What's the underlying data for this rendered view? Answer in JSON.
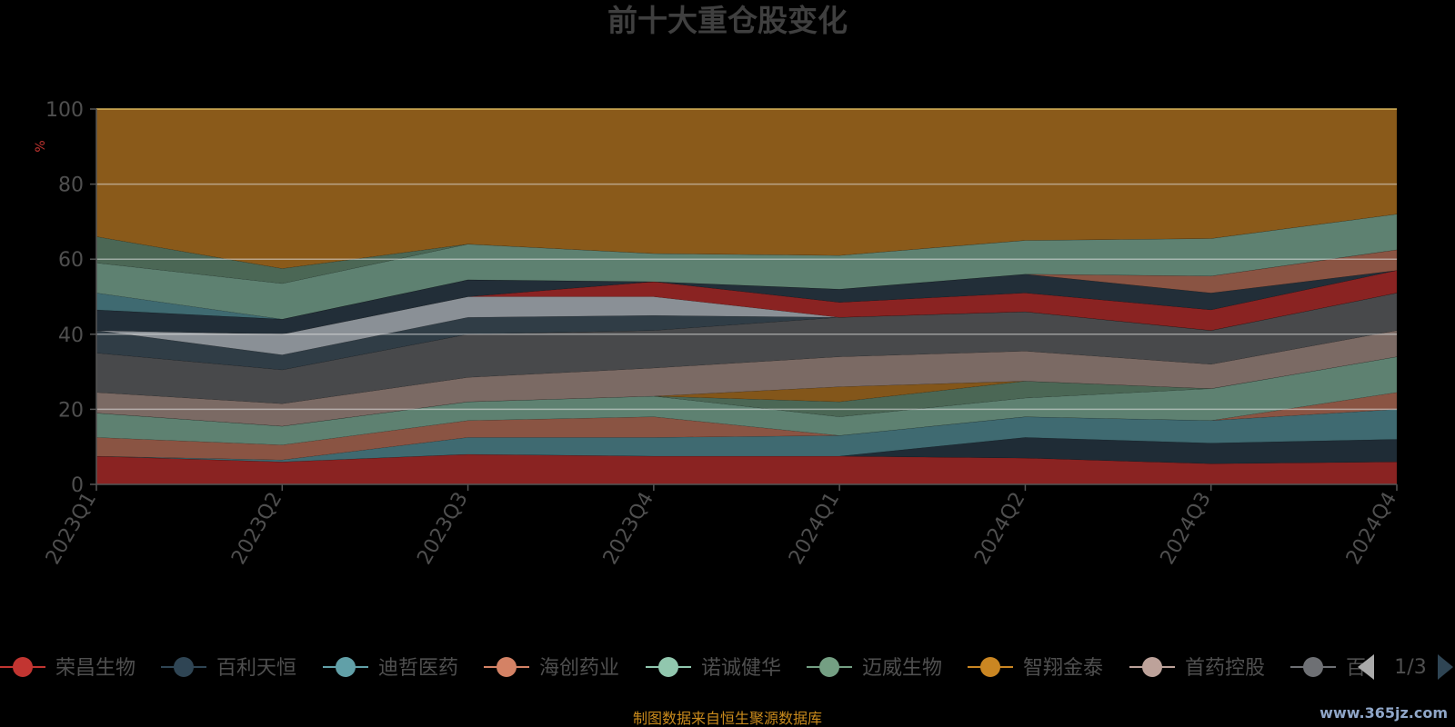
{
  "chart_data": {
    "type": "area",
    "title": "前十大重仓股变化",
    "ylabel": "%",
    "ylim": [
      0,
      100
    ],
    "yticks": [
      0,
      20,
      40,
      60,
      80,
      100
    ],
    "categories": [
      "2023Q1",
      "2023Q2",
      "2023Q3",
      "2023Q4",
      "2024Q1",
      "2024Q2",
      "2024Q3",
      "2024Q4"
    ],
    "stacked": true,
    "grid": true,
    "legend_position": "bottom",
    "legend_page": "1/3",
    "legend": [
      {
        "name": "荣昌生物",
        "color": "#c23531"
      },
      {
        "name": "百利天恒",
        "color": "#2f4554"
      },
      {
        "name": "迪哲医药",
        "color": "#61a0a8"
      },
      {
        "name": "海创药业",
        "color": "#d48265"
      },
      {
        "name": "诺诚健华",
        "color": "#91c7ae"
      },
      {
        "name": "迈威生物",
        "color": "#749f83"
      },
      {
        "name": "智翔金泰",
        "color": "#ca8622"
      },
      {
        "name": "首药控股",
        "color": "#bda29a"
      },
      {
        "name": "百",
        "color": "#6e7074"
      }
    ],
    "bands": [
      {
        "color": "#8a2322",
        "upper": [
          7.5,
          6,
          8,
          7.5,
          7.5,
          7,
          5.5,
          6
        ]
      },
      {
        "color": "#1f2c36",
        "upper": [
          7.5,
          6,
          8,
          7.5,
          7.5,
          12.5,
          11,
          12
        ]
      },
      {
        "color": "#3f6a71",
        "upper": [
          7.5,
          6.5,
          12.5,
          12.5,
          13,
          18,
          17,
          20
        ]
      },
      {
        "color": "#8a5443",
        "upper": [
          12.5,
          10.5,
          17,
          18,
          13,
          18,
          17,
          24.5
        ]
      },
      {
        "color": "#5e8171",
        "upper": [
          19,
          15.5,
          22,
          23.5,
          18,
          23,
          25.5,
          34
        ]
      },
      {
        "color": "#4b6755",
        "upper": [
          19,
          15.5,
          22,
          23.5,
          22,
          27.5,
          25.5,
          34
        ]
      },
      {
        "color": "#83561a",
        "upper": [
          19,
          15.5,
          22,
          23.5,
          26,
          27.5,
          25.5,
          34
        ]
      },
      {
        "color": "#7b6a64",
        "upper": [
          24.5,
          21.5,
          28.5,
          31,
          34,
          35.5,
          32,
          41
        ]
      },
      {
        "color": "#48494b",
        "upper": [
          35,
          30.5,
          40,
          41,
          44.5,
          46,
          41,
          51
        ]
      },
      {
        "color": "#303d46",
        "upper": [
          41,
          34.5,
          44.5,
          45,
          44.5,
          46,
          41,
          51
        ]
      },
      {
        "color": "#8a9096",
        "upper": [
          41,
          40,
          50,
          50,
          44.5,
          46,
          41,
          51
        ]
      },
      {
        "color": "#8a2322",
        "upper": [
          41,
          40,
          50,
          54,
          48.5,
          51,
          46.5,
          57
        ]
      },
      {
        "color": "#222e38",
        "upper": [
          46.5,
          44,
          54.5,
          54,
          52,
          56,
          51,
          57
        ]
      },
      {
        "color": "#8a5443",
        "upper": [
          46.5,
          44,
          54.5,
          54,
          52,
          56,
          55.5,
          62.5
        ]
      },
      {
        "color": "#3f6a71",
        "upper": [
          51,
          44,
          54.5,
          54,
          52,
          56,
          55.5,
          62.5
        ]
      },
      {
        "color": "#5e8171",
        "upper": [
          59,
          53.5,
          64,
          61.5,
          61,
          65,
          65.5,
          72
        ]
      },
      {
        "color": "#4b6755",
        "upper": [
          66,
          57.5,
          64,
          61.5,
          61,
          65,
          65.5,
          72
        ]
      },
      {
        "color": "#8a5a1a",
        "upper": [
          100,
          100,
          100,
          100,
          100,
          100,
          100,
          100
        ]
      }
    ],
    "source_note": "制图数据来自恒生聚源数据库",
    "watermark": "www.365jz.com"
  }
}
